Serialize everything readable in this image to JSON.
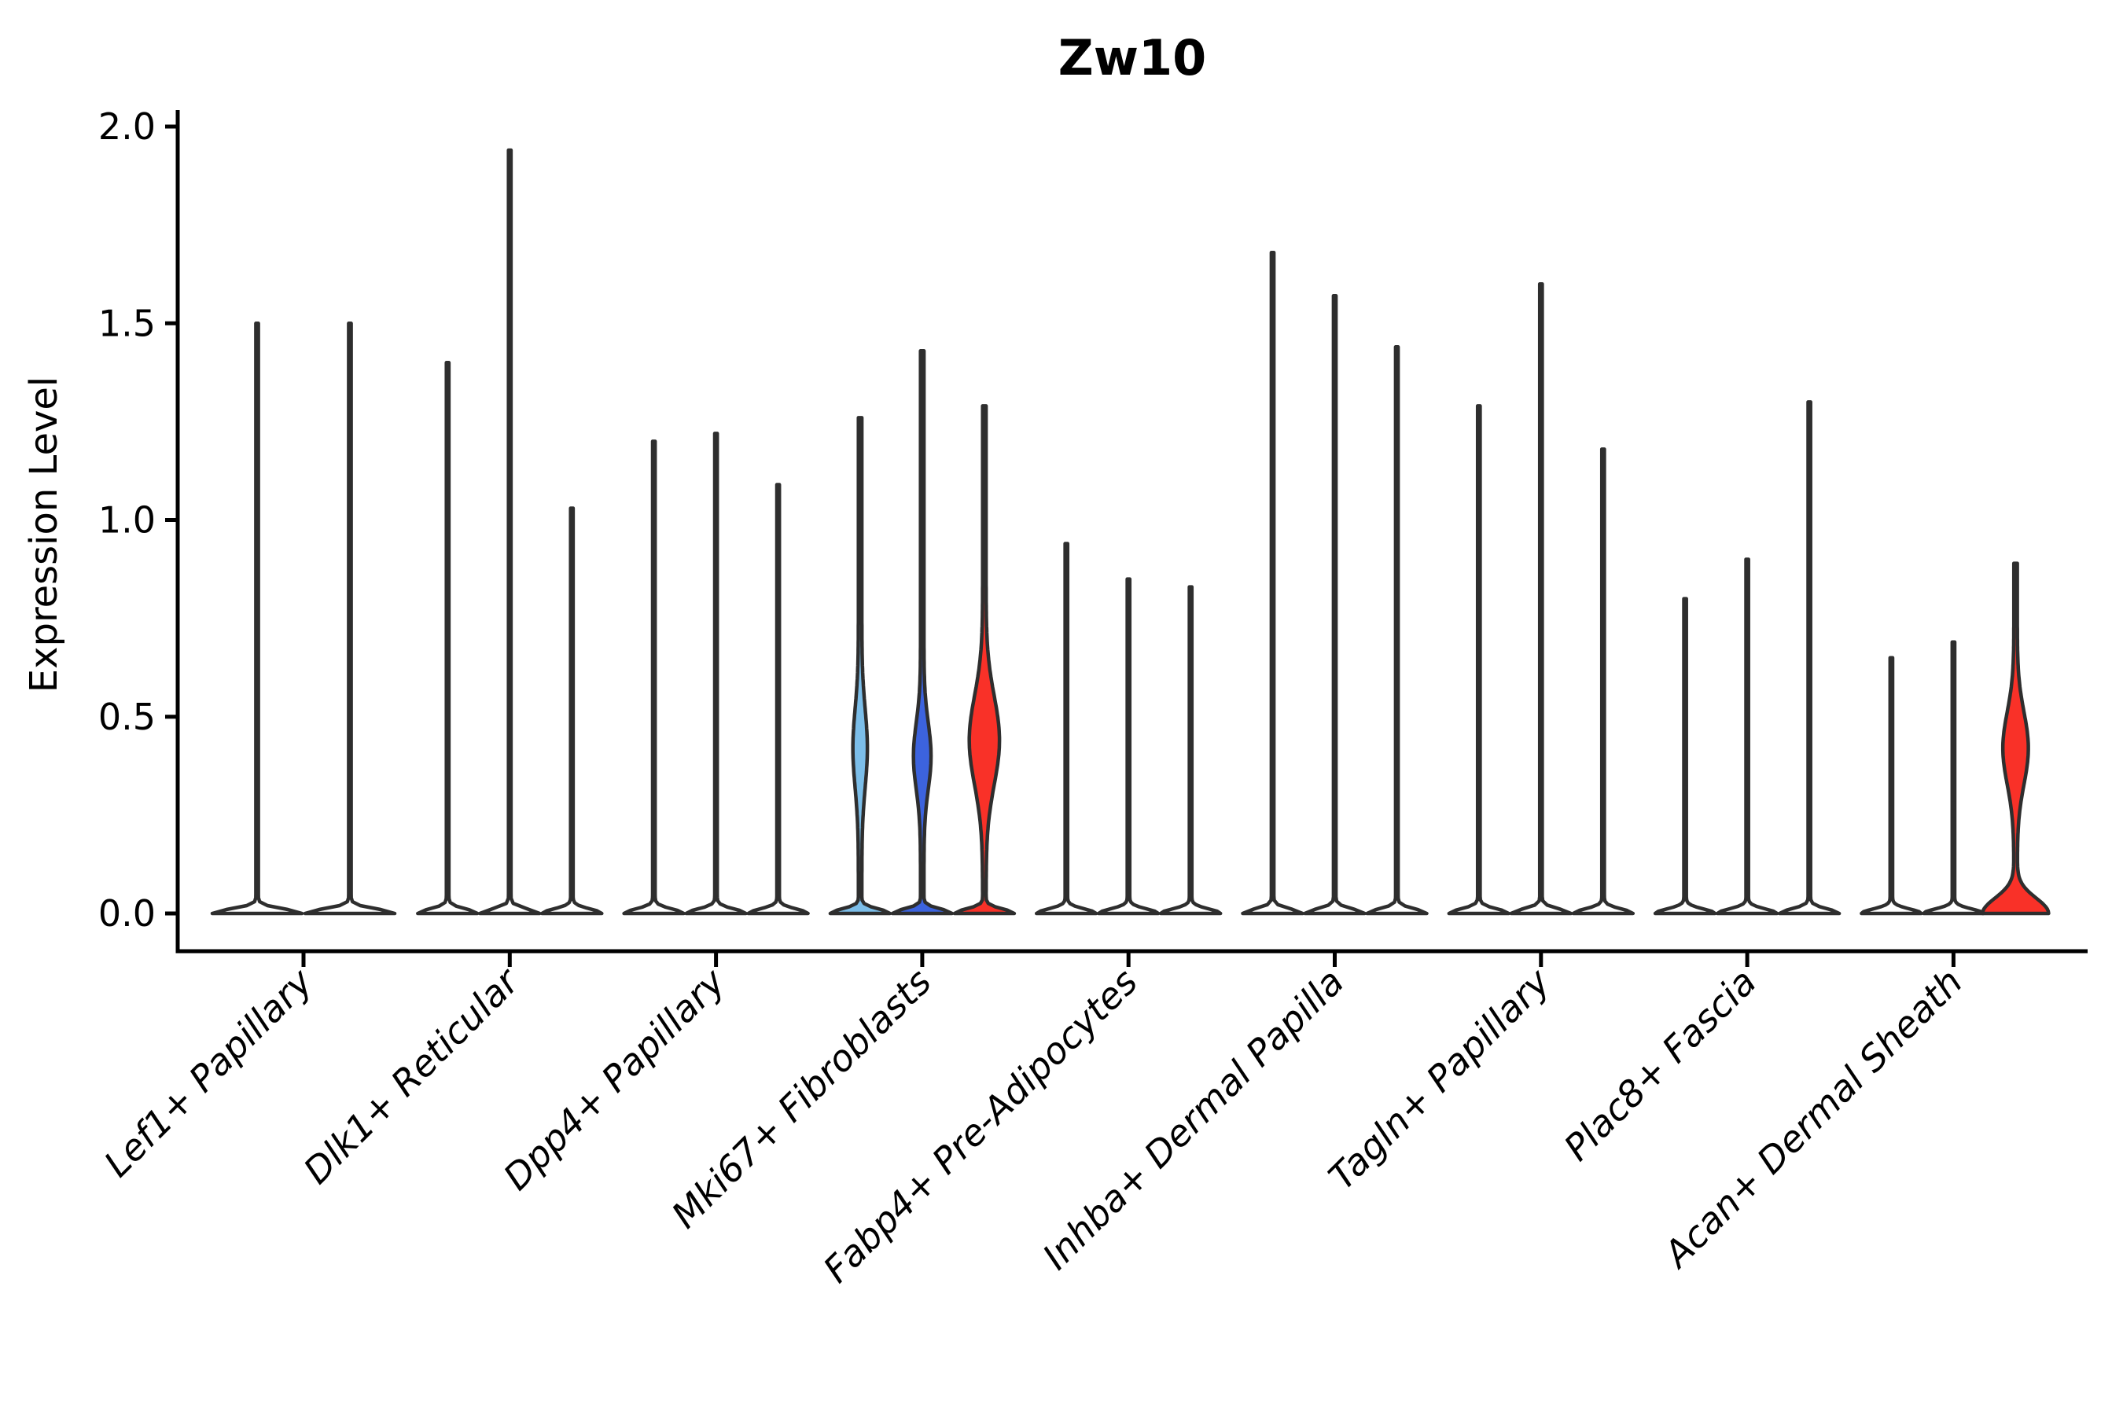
{
  "title": "Zw10",
  "axes": {
    "y_label": "Expression Level",
    "x_label": ""
  },
  "chart_data": {
    "type": "violin",
    "title": "Zw10",
    "ylabel": "Expression Level",
    "ylim": [
      0,
      2.05
    ],
    "grid": false,
    "legend_position": "none",
    "yticks": [
      {
        "value": 0.0,
        "label": "0.0"
      },
      {
        "value": 0.5,
        "label": "0.5"
      },
      {
        "value": 1.0,
        "label": "1.0"
      },
      {
        "value": 1.5,
        "label": "1.5"
      },
      {
        "value": 2.0,
        "label": "2.0"
      }
    ],
    "colors": {
      "split_skyblue": "#7cbee9",
      "split_royalblue": "#3c63de",
      "split_red": "#f93128",
      "outline": "#2e2e2e",
      "spike_fill": "#ffffff"
    },
    "categories": [
      {
        "label": "Lef1+ Papillary",
        "violins": [
          {
            "max": 1.5,
            "kind": "spike"
          },
          {
            "max": 1.5,
            "kind": "spike"
          }
        ]
      },
      {
        "label": "Dlk1+ Reticular",
        "violins": [
          {
            "max": 1.4,
            "kind": "spike"
          },
          {
            "max": 1.94,
            "kind": "spike"
          },
          {
            "max": 1.03,
            "kind": "spike"
          }
        ]
      },
      {
        "label": "Dpp4+ Papillary",
        "violins": [
          {
            "max": 1.2,
            "kind": "spike"
          },
          {
            "max": 1.22,
            "kind": "spike"
          },
          {
            "max": 1.09,
            "kind": "spike"
          }
        ]
      },
      {
        "label": "Mki67+ Fibroblasts",
        "violins": [
          {
            "max": 1.26,
            "kind": "violin",
            "fill": "#7cbee9",
            "bulge": {
              "a": 7,
              "c": 0.42,
              "s": 0.14
            }
          },
          {
            "max": 1.43,
            "kind": "violin",
            "fill": "#3c63de",
            "bulge": {
              "a": 9,
              "c": 0.4,
              "s": 0.12
            }
          },
          {
            "max": 1.29,
            "kind": "violin",
            "fill": "#f93128",
            "bulge": {
              "a": 17,
              "c": 0.44,
              "s": 0.16
            }
          }
        ]
      },
      {
        "label": "Fabp4+ Pre-Adipocytes",
        "violins": [
          {
            "max": 0.94,
            "kind": "spike"
          },
          {
            "max": 0.85,
            "kind": "spike"
          },
          {
            "max": 0.83,
            "kind": "spike"
          }
        ]
      },
      {
        "label": "Inhba+ Dermal Papilla",
        "violins": [
          {
            "max": 1.68,
            "kind": "spike"
          },
          {
            "max": 1.57,
            "kind": "spike"
          },
          {
            "max": 1.44,
            "kind": "spike"
          }
        ]
      },
      {
        "label": "Tagln+ Papillary",
        "violins": [
          {
            "max": 1.29,
            "kind": "spike"
          },
          {
            "max": 1.6,
            "kind": "spike"
          },
          {
            "max": 1.18,
            "kind": "spike"
          }
        ]
      },
      {
        "label": "Plac8+ Fascia",
        "violins": [
          {
            "max": 0.8,
            "kind": "spike",
            "points": [
              0.48,
              0.4,
              0.33,
              0.25
            ]
          },
          {
            "max": 0.9,
            "kind": "spike",
            "points": [
              0.52,
              0.44,
              0.4,
              0.28
            ]
          },
          {
            "max": 1.3,
            "kind": "spike"
          }
        ]
      },
      {
        "label": "Acan+ Dermal Sheath",
        "violins": [
          {
            "max": 0.65,
            "kind": "spike",
            "points": [
              0.59,
              0.54,
              0.5,
              0.44,
              0.39,
              0.28
            ]
          },
          {
            "max": 0.69,
            "kind": "spike",
            "points": [
              0.49,
              0.46,
              0.29,
              0.27,
              0.25
            ]
          },
          {
            "max": 0.89,
            "kind": "violin",
            "fill": "#f93128",
            "bulge": {
              "a": 14,
              "c": 0.42,
              "s": 0.13
            },
            "footSigma": 0.055,
            "footHW": 42
          }
        ]
      }
    ]
  }
}
